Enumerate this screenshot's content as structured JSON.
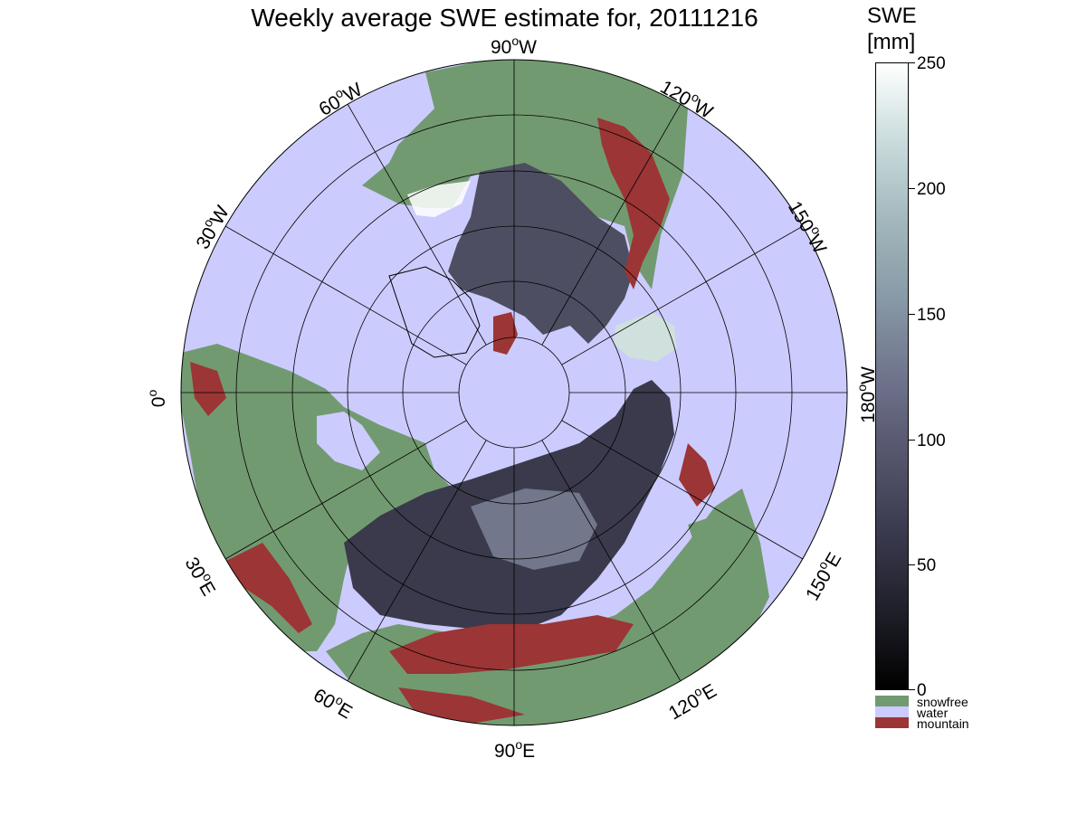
{
  "title": "Weekly average SWE estimate for, 20111216",
  "colorbar": {
    "title_line1": "SWE",
    "title_line2": "[mm]",
    "ticks": [
      "250",
      "200",
      "150",
      "100",
      "50",
      "0"
    ],
    "range": [
      0,
      250
    ]
  },
  "legend": [
    {
      "label": "snowfree",
      "color": "#729a70"
    },
    {
      "label": "water",
      "color": "#cccbfe"
    },
    {
      "label": "mountain",
      "color": "#9c3535"
    }
  ],
  "longitude_labels": {
    "top": [
      "90",
      "W"
    ],
    "upper_right_1": [
      "120",
      "W"
    ],
    "upper_right_2": [
      "150",
      "W"
    ],
    "right": [
      "180",
      "W"
    ],
    "lower_right_1": [
      "150",
      "E"
    ],
    "lower_right_2": [
      "120",
      "E"
    ],
    "bottom": [
      "90",
      "E"
    ],
    "lower_left_1": [
      "60",
      "E"
    ],
    "lower_left_2": [
      "30",
      "E"
    ],
    "left": [
      "0",
      ""
    ],
    "upper_left_1": [
      "30",
      "W"
    ],
    "upper_left_2": [
      "60",
      "W"
    ]
  },
  "map_colors": {
    "water": "#cccbfe",
    "snowfree": "#729a70",
    "mountain": "#9c3535",
    "snow_low": "#2e2e3c",
    "snow_mid": "#606079",
    "snow_high": "#cfe0dd"
  }
}
